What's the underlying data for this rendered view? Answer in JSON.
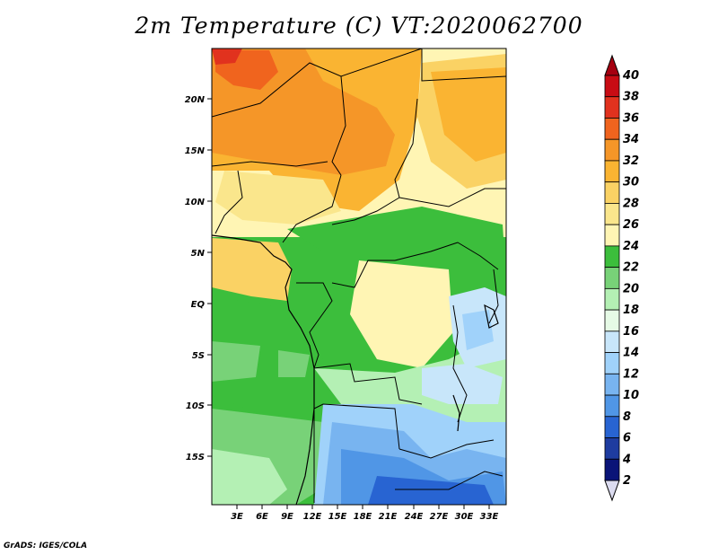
{
  "title": "2m Temperature (C) VT:2020062700",
  "footer": "GrADS: IGES/COLA",
  "map": {
    "lat_labels": [
      "20N",
      "15N",
      "10N",
      "5N",
      "EQ",
      "5S",
      "10S",
      "15S"
    ],
    "lon_labels": [
      "3E",
      "6E",
      "9E",
      "12E",
      "15E",
      "18E",
      "21E",
      "24E",
      "27E",
      "30E",
      "33E"
    ]
  },
  "colorbar": {
    "labels": [
      "40",
      "38",
      "36",
      "34",
      "32",
      "30",
      "28",
      "26",
      "24",
      "22",
      "20",
      "18",
      "16",
      "14",
      "12",
      "10",
      "8",
      "6",
      "4",
      "2"
    ],
    "colors": [
      "#a50010",
      "#c80c14",
      "#e1321e",
      "#f0641e",
      "#f59628",
      "#fab432",
      "#fad264",
      "#fae68c",
      "#fff5b4",
      "#3cbe3c",
      "#78d278",
      "#b4f0b4",
      "#e6fae6",
      "#c8e6fa",
      "#a0d2fa",
      "#78b4f0",
      "#5096e6",
      "#2864d2",
      "#1e3ca0",
      "#0a1478"
    ],
    "top_color": "#a50010",
    "bottom_color": "#dcdcf0"
  }
}
